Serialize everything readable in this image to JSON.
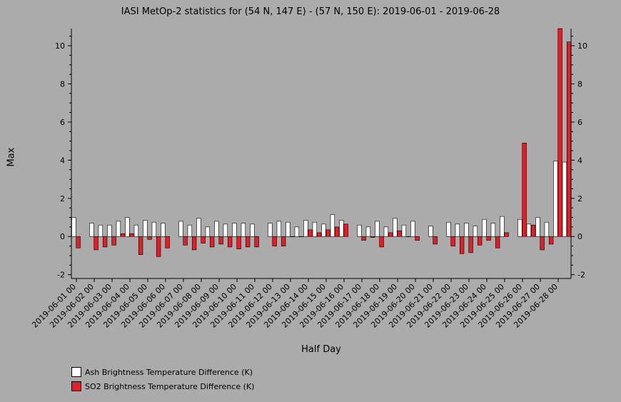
{
  "chart_data": {
    "type": "bar",
    "title": "IASI MetOp-2 statistics for (54 N, 147 E) - (57 N, 150 E): 2019-06-01 - 2019-06-28",
    "xlabel": "Half Day",
    "ylabel": "Max",
    "ylim": [
      -2.2,
      10.9
    ],
    "yticks": [
      -2,
      0,
      2,
      4,
      6,
      8,
      10
    ],
    "x_tick_labels": [
      "2019-06-01 00",
      "2019-06-02 00",
      "2019-06-03 00",
      "2019-06-04 00",
      "2019-06-05 00",
      "2019-06-06 00",
      "2019-06-07 00",
      "2019-06-08 00",
      "2019-06-09 00",
      "2019-06-10 00",
      "2019-06-11 00",
      "2019-06-12 00",
      "2019-06-13 00",
      "2019-06-14 00",
      "2019-06-15 00",
      "2019-06-16 00",
      "2019-06-17 00",
      "2019-06-18 00",
      "2019-06-19 00",
      "2019-06-20 00",
      "2019-06-21 00",
      "2019-06-22 00",
      "2019-06-23 00",
      "2019-06-24 00",
      "2019-06-25 00",
      "2019-06-26 00",
      "2019-06-27 00",
      "2019-06-28 00"
    ],
    "legend_position": "bottom-left",
    "series": [
      {
        "name": "Ash Brightness Temperature Difference (K)",
        "color": "#ffffff",
        "values": [
          1.0,
          null,
          0.7,
          0.6,
          0.6,
          0.8,
          1.0,
          0.6,
          0.85,
          0.75,
          0.7,
          null,
          0.8,
          0.6,
          0.95,
          0.5,
          0.8,
          0.65,
          0.7,
          0.7,
          0.65,
          null,
          0.7,
          0.8,
          0.75,
          0.5,
          0.85,
          0.75,
          0.65,
          1.15,
          0.85,
          null,
          0.6,
          0.5,
          0.8,
          0.5,
          0.95,
          0.6,
          0.8,
          null,
          0.55,
          null,
          0.75,
          0.65,
          0.7,
          0.55,
          0.9,
          0.7,
          1.05,
          null,
          0.9,
          0.65,
          1.0,
          0.75,
          3.95,
          3.9
        ]
      },
      {
        "name": "SO2 Brightness Temperature Difference (K)",
        "color": "#e21f26",
        "values": [
          -0.6,
          null,
          -0.7,
          -0.55,
          -0.45,
          0.15,
          0.15,
          -0.95,
          -0.15,
          -1.05,
          -0.6,
          null,
          -0.45,
          -0.7,
          -0.35,
          -0.55,
          -0.4,
          -0.55,
          -0.65,
          -0.55,
          -0.55,
          null,
          -0.5,
          -0.5,
          0.0,
          0.0,
          0.35,
          0.2,
          0.35,
          0.5,
          0.65,
          null,
          -0.2,
          -0.05,
          -0.55,
          0.2,
          0.3,
          0.0,
          -0.2,
          null,
          -0.4,
          null,
          -0.5,
          -0.9,
          -0.85,
          -0.45,
          -0.2,
          -0.6,
          0.2,
          null,
          4.9,
          0.6,
          -0.7,
          -0.4,
          10.9,
          10.2
        ]
      }
    ]
  }
}
